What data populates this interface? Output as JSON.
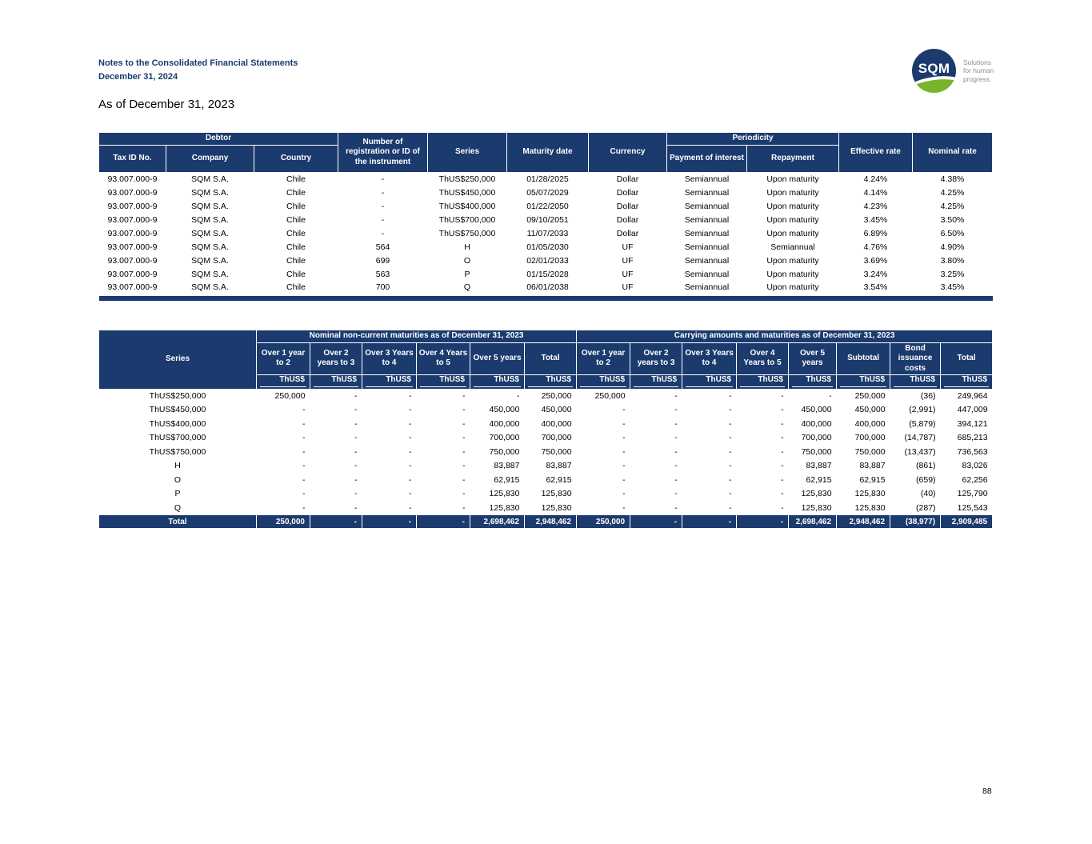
{
  "colors": {
    "navy": "#1b3a6d",
    "green": "#78b52a",
    "tagline_gray": "#8c8c8c"
  },
  "page": {
    "header_line1": "Notes to the Consolidated Financial Statements",
    "header_line2": "December 31, 2024",
    "section_title": "As of December 31, 2023",
    "page_number": "88"
  },
  "logo": {
    "text": "SQM",
    "tagline": [
      "Solutions",
      "for human",
      "progress"
    ]
  },
  "table1": {
    "headers": {
      "debtor_group": "Debtor",
      "tax_id": "Tax ID No.",
      "company": "Company",
      "country": "Country",
      "registration": "Number of registration or ID of the instrument",
      "series": "Series",
      "maturity_date": "Maturity date",
      "currency": "Currency",
      "periodicity_group": "Periodicity",
      "payment_of_interest": "Payment of interest",
      "repayment": "Repayment",
      "effective_rate": "Effective rate",
      "nominal_rate": "Nominal rate"
    },
    "rows": [
      [
        "93.007.000-9",
        "SQM S.A.",
        "Chile",
        "-",
        "ThUS$250,000",
        "01/28/2025",
        "Dollar",
        "Semiannual",
        "Upon maturity",
        "4.24%",
        "4.38%"
      ],
      [
        "93.007.000-9",
        "SQM S.A.",
        "Chile",
        "-",
        "ThUS$450,000",
        "05/07/2029",
        "Dollar",
        "Semiannual",
        "Upon maturity",
        "4.14%",
        "4.25%"
      ],
      [
        "93.007.000-9",
        "SQM S.A.",
        "Chile",
        "-",
        "ThUS$400,000",
        "01/22/2050",
        "Dollar",
        "Semiannual",
        "Upon maturity",
        "4.23%",
        "4.25%"
      ],
      [
        "93.007.000-9",
        "SQM S.A.",
        "Chile",
        "-",
        "ThUS$700,000",
        "09/10/2051",
        "Dollar",
        "Semiannual",
        "Upon maturity",
        "3.45%",
        "3.50%"
      ],
      [
        "93.007.000-9",
        "SQM S.A.",
        "Chile",
        "-",
        "ThUS$750,000",
        "11/07/2033",
        "Dollar",
        "Semiannual",
        "Upon maturity",
        "6.89%",
        "6.50%"
      ],
      [
        "93.007.000-9",
        "SQM S.A.",
        "Chile",
        "564",
        "H",
        "01/05/2030",
        "UF",
        "Semiannual",
        "Semiannual",
        "4.76%",
        "4.90%"
      ],
      [
        "93.007.000-9",
        "SQM S.A.",
        "Chile",
        "699",
        "O",
        "02/01/2033",
        "UF",
        "Semiannual",
        "Upon maturity",
        "3.69%",
        "3.80%"
      ],
      [
        "93.007.000-9",
        "SQM S.A.",
        "Chile",
        "563",
        "P",
        "01/15/2028",
        "UF",
        "Semiannual",
        "Upon maturity",
        "3.24%",
        "3.25%"
      ],
      [
        "93.007.000-9",
        "SQM S.A.",
        "Chile",
        "700",
        "Q",
        "06/01/2038",
        "UF",
        "Semiannual",
        "Upon maturity",
        "3.54%",
        "3.45%"
      ]
    ]
  },
  "table2": {
    "headers": {
      "series": "Series",
      "nominal_group": "Nominal non-current maturities as of December 31, 2023",
      "carrying_group": "Carrying amounts and maturities as of December 31, 2023",
      "nominal_cols": [
        "Over 1 year to 2",
        "Over 2 years to 3",
        "Over 3 Years to 4",
        "Over 4 Years to 5",
        "Over 5 years",
        "Total"
      ],
      "carrying_cols": [
        "Over 1 year to 2",
        "Over 2 years to 3",
        "Over 3 Years to 4",
        "Over 4 Years to 5",
        "Over 5 years",
        "Subtotal",
        "Bond issuance costs",
        "Total"
      ],
      "unit": "ThUS$"
    },
    "rows": [
      [
        "ThUS$250,000",
        "250,000",
        "-",
        "-",
        "-",
        "-",
        "250,000",
        "250,000",
        "-",
        "-",
        "-",
        "-",
        "250,000",
        "(36)",
        "249,964"
      ],
      [
        "ThUS$450,000",
        "-",
        "-",
        "-",
        "-",
        "450,000",
        "450,000",
        "-",
        "-",
        "-",
        "-",
        "450,000",
        "450,000",
        "(2,991)",
        "447,009"
      ],
      [
        "ThUS$400,000",
        "-",
        "-",
        "-",
        "-",
        "400,000",
        "400,000",
        "-",
        "-",
        "-",
        "-",
        "400,000",
        "400,000",
        "(5,879)",
        "394,121"
      ],
      [
        "ThUS$700,000",
        "-",
        "-",
        "-",
        "-",
        "700,000",
        "700,000",
        "-",
        "-",
        "-",
        "-",
        "700,000",
        "700,000",
        "(14,787)",
        "685,213"
      ],
      [
        "ThUS$750,000",
        "-",
        "-",
        "-",
        "-",
        "750,000",
        "750,000",
        "-",
        "-",
        "-",
        "-",
        "750,000",
        "750,000",
        "(13,437)",
        "736,563"
      ],
      [
        "H",
        "-",
        "-",
        "-",
        "-",
        "83,887",
        "83,887",
        "-",
        "-",
        "-",
        "-",
        "83,887",
        "83,887",
        "(861)",
        "83,026"
      ],
      [
        "O",
        "-",
        "-",
        "-",
        "-",
        "62,915",
        "62,915",
        "-",
        "-",
        "-",
        "-",
        "62,915",
        "62,915",
        "(659)",
        "62,256"
      ],
      [
        "P",
        "-",
        "-",
        "-",
        "-",
        "125,830",
        "125,830",
        "-",
        "-",
        "-",
        "-",
        "125,830",
        "125,830",
        "(40)",
        "125,790"
      ],
      [
        "Q",
        "-",
        "-",
        "-",
        "-",
        "125,830",
        "125,830",
        "-",
        "-",
        "-",
        "-",
        "125,830",
        "125,830",
        "(287)",
        "125,543"
      ]
    ],
    "total_row": [
      "Total",
      "250,000",
      "-",
      "-",
      "-",
      "2,698,462",
      "2,948,462",
      "250,000",
      "-",
      "-",
      "-",
      "2,698,462",
      "2,948,462",
      "(38,977)",
      "2,909,485"
    ]
  }
}
